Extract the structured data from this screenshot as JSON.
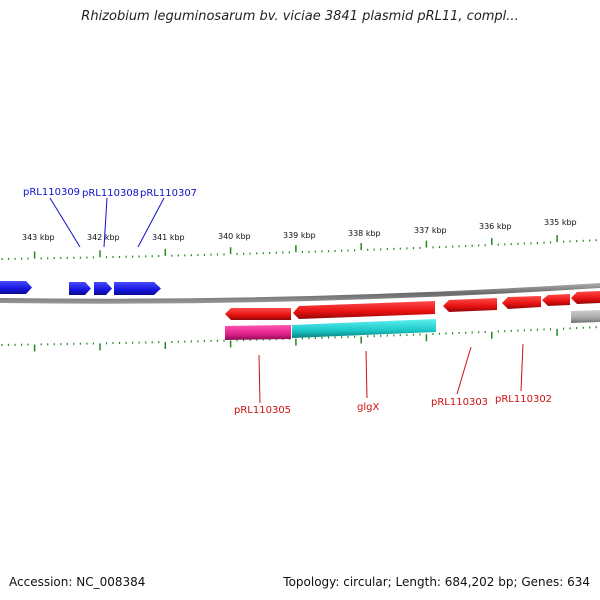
{
  "title": "Rhizobium leguminosarum bv. viciae 3841 plasmid pRL11, compl...",
  "footer": {
    "accession": "Accession: NC_008384",
    "summary": "Topology: circular; Length: 684,202 bp; Genes: 634"
  },
  "scale_labels": [
    "343 kbp",
    "342 kbp",
    "341 kbp",
    "340 kbp",
    "339 kbp",
    "338 kbp",
    "337 kbp",
    "336 kbp",
    "335 kbp"
  ],
  "gene_labels": {
    "forward": [
      "pRL110309",
      "pRL110308",
      "pRL110307"
    ],
    "reverse": [
      "pRL110305",
      "glgX",
      "pRL110303",
      "pRL110302"
    ]
  },
  "colors": {
    "forward_gene": "#1a1aee",
    "reverse_gene": "#ee1111",
    "forward_label": "#1010cc",
    "reverse_label": "#cc1010",
    "feature_magenta": "#e0208a",
    "feature_cyan": "#1cc8c8",
    "feature_gray": "#a8a8a8",
    "backbone": "#808080",
    "tick": "#228822"
  }
}
